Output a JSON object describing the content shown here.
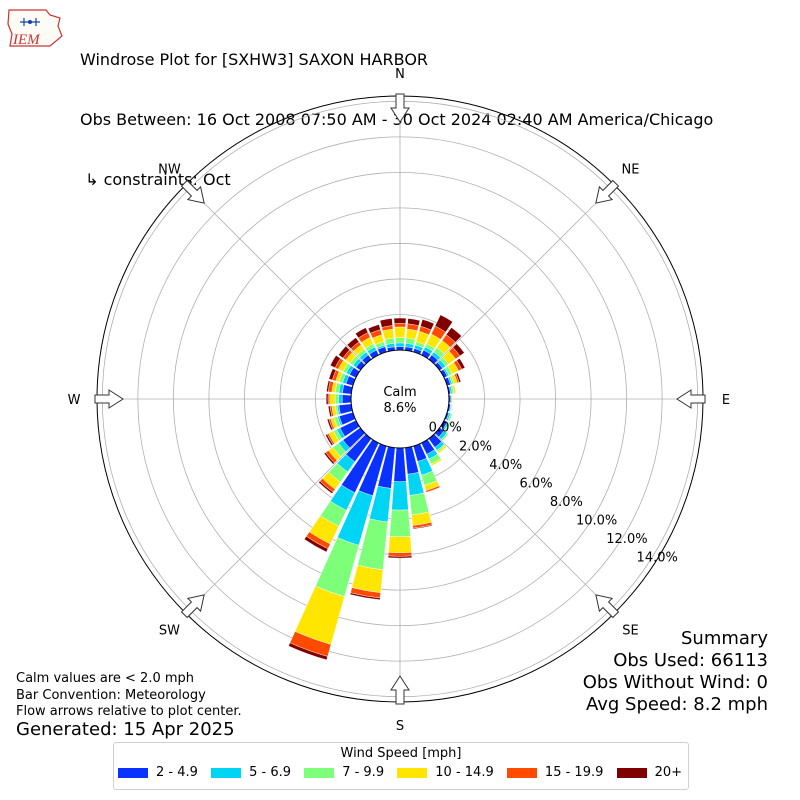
{
  "header": {
    "logo_text": "IEM",
    "title": "Windrose Plot for [SXHW3] SAXON HARBOR",
    "subtitle": "Obs Between: 16 Oct 2008 07:50 AM - 30 Oct 2024 02:40 AM America/Chicago",
    "constraints": " ↳ constraints: Oct"
  },
  "calm": {
    "label": "Calm",
    "value": "8.6%"
  },
  "notes": {
    "line1": "Calm values are < 2.0 mph",
    "line2": "Bar Convention: Meteorology",
    "line3": "Flow arrows relative to plot center.",
    "generated": "Generated: 15 Apr 2025"
  },
  "summary": {
    "title": "Summary",
    "obs_used": "Obs Used: 66113",
    "obs_without_wind": "Obs Without Wind: 0",
    "avg_speed": "Avg Speed: 8.2 mph"
  },
  "legend": {
    "title": "Wind Speed [mph]",
    "items": [
      {
        "label": "2 - 4.9",
        "color": "#0a32ff"
      },
      {
        "label": "5 - 6.9",
        "color": "#00d4f4"
      },
      {
        "label": "7 - 9.9",
        "color": "#7dff7a"
      },
      {
        "label": "10 - 14.9",
        "color": "#ffe500"
      },
      {
        "label": "15 - 19.9",
        "color": "#ff4a00"
      },
      {
        "label": "20+",
        "color": "#800000"
      }
    ]
  },
  "chart_data": {
    "type": "windrose",
    "calm_percent": 8.6,
    "radial_ticks": [
      0,
      2,
      4,
      6,
      8,
      10,
      12,
      14
    ],
    "radial_tick_labels": [
      "0.0%",
      "2.0%",
      "4.0%",
      "6.0%",
      "8.0%",
      "10.0%",
      "12.0%",
      "14.0%"
    ],
    "rlim": [
      0,
      14.3
    ],
    "compass_labels": [
      {
        "label": "N",
        "angle": 0
      },
      {
        "label": "NE",
        "angle": 45
      },
      {
        "label": "E",
        "angle": 90
      },
      {
        "label": "SE",
        "angle": 135
      },
      {
        "label": "S",
        "angle": 180
      },
      {
        "label": "SW",
        "angle": 225
      },
      {
        "label": "W",
        "angle": 270
      },
      {
        "label": "NW",
        "angle": 315
      }
    ],
    "speed_bins": [
      "2 - 4.9",
      "5 - 6.9",
      "7 - 9.9",
      "10 - 14.9",
      "15 - 19.9",
      "20+"
    ],
    "colors": [
      "#0a32ff",
      "#00d4f4",
      "#7dff7a",
      "#ffe500",
      "#ff4a00",
      "#800000"
    ],
    "directions": [
      0,
      10,
      20,
      30,
      40,
      50,
      60,
      70,
      80,
      90,
      100,
      110,
      120,
      130,
      140,
      150,
      160,
      170,
      180,
      190,
      200,
      210,
      220,
      230,
      240,
      250,
      260,
      270,
      280,
      290,
      300,
      310,
      320,
      330,
      340,
      350
    ],
    "cumulative_percent": [
      [
        0.2,
        0.4,
        0.7,
        1.3,
        1.5,
        1.8
      ],
      [
        0.2,
        0.4,
        0.7,
        1.2,
        1.5,
        1.8
      ],
      [
        0.2,
        0.4,
        0.6,
        1.2,
        1.5,
        1.9
      ],
      [
        0.3,
        0.5,
        0.7,
        1.3,
        1.8,
        2.5
      ],
      [
        0.3,
        0.5,
        0.8,
        1.3,
        1.7,
        2.2
      ],
      [
        0.2,
        0.4,
        0.6,
        1.1,
        1.4,
        1.7
      ],
      [
        0.2,
        0.3,
        0.5,
        0.9,
        1.1,
        1.3
      ],
      [
        0.2,
        0.3,
        0.4,
        0.6,
        0.7,
        0.8
      ],
      [
        0.1,
        0.2,
        0.3,
        0.4,
        0.4,
        0.4
      ],
      [
        0.1,
        0.15,
        0.15,
        0.2,
        0.2,
        0.2
      ],
      [
        0.1,
        0.15,
        0.2,
        0.2,
        0.2,
        0.2
      ],
      [
        0.1,
        0.2,
        0.3,
        0.3,
        0.3,
        0.3
      ],
      [
        0.2,
        0.3,
        0.4,
        0.4,
        0.4,
        0.4
      ],
      [
        0.3,
        0.5,
        0.6,
        0.6,
        0.6,
        0.6
      ],
      [
        0.6,
        0.8,
        0.9,
        1.0,
        1.0,
        1.0
      ],
      [
        0.7,
        1.0,
        1.3,
        1.4,
        1.4,
        1.4
      ],
      [
        0.9,
        1.7,
        2.3,
        2.6,
        2.7,
        2.7
      ],
      [
        1.5,
        2.7,
        3.8,
        4.4,
        4.55,
        4.6
      ],
      [
        1.9,
        3.5,
        5.0,
        5.9,
        6.1,
        6.2
      ],
      [
        2.3,
        4.2,
        6.9,
        8.2,
        8.5,
        8.6
      ],
      [
        2.9,
        5.8,
        8.8,
        11.6,
        12.3,
        12.5
      ],
      [
        3.1,
        4.2,
        5.2,
        6.3,
        6.6,
        6.8
      ],
      [
        1.6,
        2.3,
        3.0,
        3.5,
        3.7,
        3.8
      ],
      [
        1.2,
        1.5,
        1.9,
        2.2,
        2.4,
        2.5
      ],
      [
        1.0,
        1.2,
        1.4,
        1.7,
        1.8,
        1.9
      ],
      [
        0.8,
        0.9,
        1.1,
        1.3,
        1.4,
        1.5
      ],
      [
        0.7,
        0.8,
        0.9,
        1.1,
        1.2,
        1.3
      ],
      [
        0.5,
        0.7,
        0.9,
        1.2,
        1.3,
        1.4
      ],
      [
        0.5,
        0.7,
        0.9,
        1.1,
        1.3,
        1.4
      ],
      [
        0.4,
        0.6,
        0.8,
        1.0,
        1.2,
        1.4
      ],
      [
        0.4,
        0.6,
        0.8,
        1.1,
        1.3,
        1.6
      ],
      [
        0.3,
        0.5,
        0.7,
        1.0,
        1.2,
        1.5
      ],
      [
        0.3,
        0.5,
        0.7,
        1.0,
        1.2,
        1.5
      ],
      [
        0.3,
        0.5,
        0.7,
        1.1,
        1.4,
        1.7
      ],
      [
        0.3,
        0.4,
        0.6,
        1.0,
        1.3,
        1.6
      ],
      [
        0.2,
        0.4,
        0.7,
        1.2,
        1.4,
        1.8
      ]
    ]
  }
}
